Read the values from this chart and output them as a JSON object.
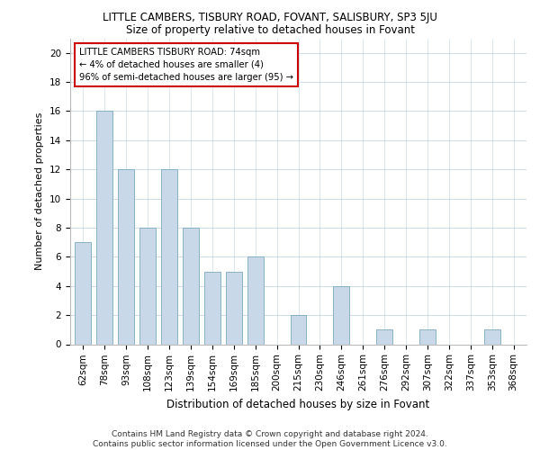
{
  "title": "LITTLE CAMBERS, TISBURY ROAD, FOVANT, SALISBURY, SP3 5JU",
  "subtitle": "Size of property relative to detached houses in Fovant",
  "xlabel": "Distribution of detached houses by size in Fovant",
  "ylabel": "Number of detached properties",
  "categories": [
    "62sqm",
    "78sqm",
    "93sqm",
    "108sqm",
    "123sqm",
    "139sqm",
    "154sqm",
    "169sqm",
    "185sqm",
    "200sqm",
    "215sqm",
    "230sqm",
    "246sqm",
    "261sqm",
    "276sqm",
    "292sqm",
    "307sqm",
    "322sqm",
    "337sqm",
    "353sqm",
    "368sqm"
  ],
  "values": [
    7,
    16,
    12,
    8,
    12,
    8,
    5,
    5,
    6,
    0,
    2,
    0,
    4,
    0,
    1,
    0,
    1,
    0,
    0,
    1,
    0
  ],
  "bar_color": "#c8d8e8",
  "bar_edge_color": "#7aaabf",
  "annotation_box_text": "LITTLE CAMBERS TISBURY ROAD: 74sqm\n← 4% of detached houses are smaller (4)\n96% of semi-detached houses are larger (95) →",
  "annotation_box_color": "#cc0000",
  "annotation_text_fontsize": 7.2,
  "ylim": [
    0,
    21
  ],
  "yticks": [
    0,
    2,
    4,
    6,
    8,
    10,
    12,
    14,
    16,
    18,
    20
  ],
  "background_color": "#ffffff",
  "grid_color": "#ccdde8",
  "footer_text": "Contains HM Land Registry data © Crown copyright and database right 2024.\nContains public sector information licensed under the Open Government Licence v3.0.",
  "title_fontsize": 8.5,
  "subtitle_fontsize": 8.5,
  "xlabel_fontsize": 8.5,
  "ylabel_fontsize": 8,
  "tick_fontsize": 7.5,
  "footer_fontsize": 6.5
}
